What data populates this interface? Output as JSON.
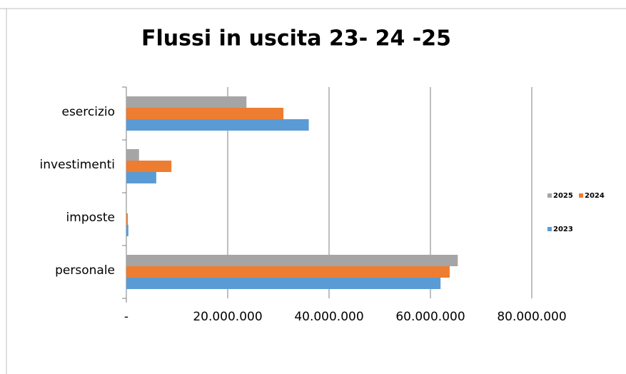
{
  "chart_data": {
    "type": "barh",
    "title": "Flussi in uscita 23- 24 -25",
    "categories": [
      "esercizio",
      "investimenti",
      "imposte",
      "personale"
    ],
    "series": [
      {
        "name": "2025",
        "color": "#a5a5a5",
        "values": [
          23700000,
          2500000,
          100000,
          65400000
        ]
      },
      {
        "name": "2024",
        "color": "#ed7d31",
        "values": [
          31000000,
          8900000,
          300000,
          63800000
        ]
      },
      {
        "name": "2023",
        "color": "#5b9bd5",
        "values": [
          36000000,
          5900000,
          400000,
          62000000
        ]
      }
    ],
    "xlim": [
      0,
      80000000
    ],
    "xticks": [
      {
        "value": 0,
        "label": "-"
      },
      {
        "value": 20000000,
        "label": "20.000.000"
      },
      {
        "value": 40000000,
        "label": "40.000.000"
      },
      {
        "value": 60000000,
        "label": "60.000.000"
      },
      {
        "value": 80000000,
        "label": "80.000.000"
      }
    ],
    "grid": true,
    "legend": "right"
  }
}
